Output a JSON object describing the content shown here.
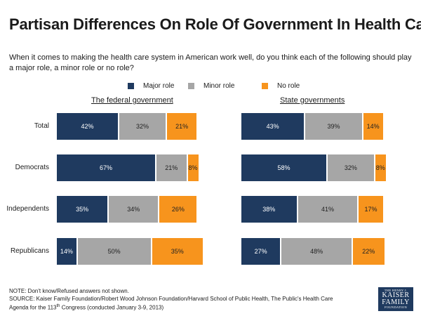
{
  "title": "Partisan Differences On Role Of Government In Health Care",
  "question": "When it comes to making the health care system in American work well, do you think each of the following should play a major role, a minor role or no role?",
  "colors": {
    "major": "#1f3a5f",
    "minor": "#a6a6a6",
    "none": "#f7941d"
  },
  "chart_data": [
    {
      "type": "bar",
      "stacked": true,
      "orientation": "horizontal",
      "title": "The federal government",
      "categories": [
        "Total",
        "Democrats",
        "Independents",
        "Republicans"
      ],
      "series": [
        {
          "name": "Major role",
          "values": [
            42,
            67,
            35,
            14
          ]
        },
        {
          "name": "Minor role",
          "values": [
            32,
            21,
            34,
            50
          ]
        },
        {
          "name": "No role",
          "values": [
            21,
            8,
            26,
            35
          ]
        }
      ],
      "legend": [
        "Major role",
        "Minor role",
        "No role"
      ]
    },
    {
      "type": "bar",
      "stacked": true,
      "orientation": "horizontal",
      "title": "State governments",
      "categories": [
        "Total",
        "Democrats",
        "Independents",
        "Republicans"
      ],
      "series": [
        {
          "name": "Major role",
          "values": [
            43,
            58,
            38,
            27
          ]
        },
        {
          "name": "Minor role",
          "values": [
            39,
            32,
            41,
            48
          ]
        },
        {
          "name": "No role",
          "values": [
            14,
            8,
            17,
            22
          ]
        }
      ],
      "legend": [
        "Major role",
        "Minor role",
        "No role"
      ]
    }
  ],
  "note_line1": "NOTE: Don't know/Refused answers  not shown.",
  "note_line2": "SOURCE: Kaiser Family Foundation/Robert Wood Johnson Foundation/Harvard School of Public Health, The Public's Health Care",
  "note_line3_pre": "Agenda for the 113",
  "note_line3_sup": "th",
  "note_line3_post": " Congress (conducted January 3-9, 2013)",
  "logo": {
    "line1": "THE HENRY J.",
    "line2": "KAISER",
    "line3": "FAMILY",
    "line4": "FOUNDATION"
  }
}
